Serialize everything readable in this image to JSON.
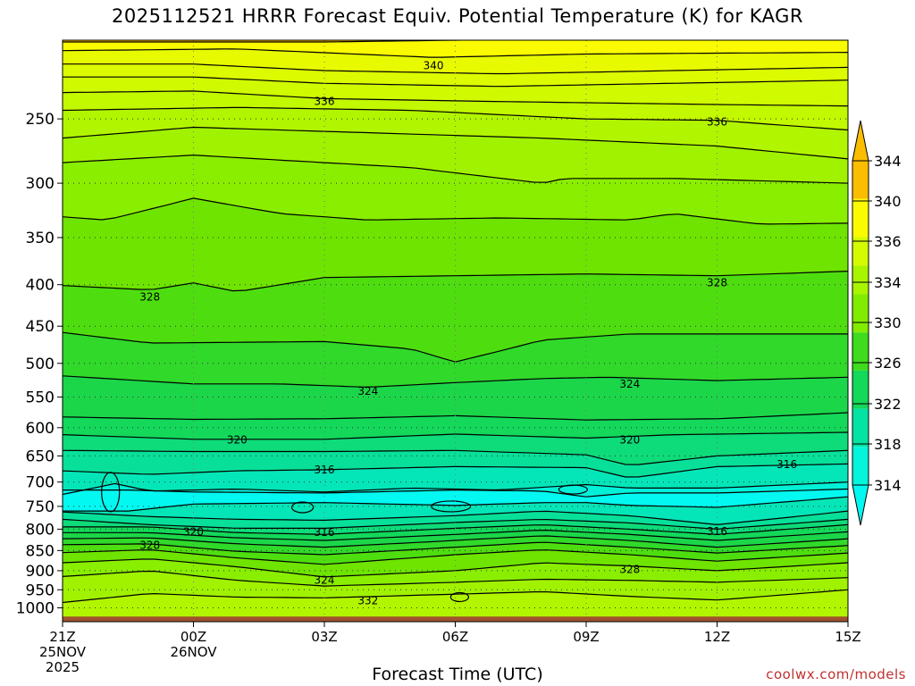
{
  "title": "2025112521 HRRR Forecast Equiv. Potential Temperature (K) for KAGR",
  "xlabel": "Forecast Time (UTC)",
  "credit": "coolwx.com/models",
  "chart_data": {
    "type": "heatmap",
    "title": "2025112521 HRRR Forecast Equiv. Potential Temperature (K) for KAGR",
    "xlabel": "Forecast Time (UTC)",
    "ylabel": "",
    "y_axis": "pressure (log, decreasing upward)",
    "ylim": [
      1040,
      200
    ],
    "xlim": [
      0,
      18
    ],
    "x_ticks": [
      {
        "hour": 0,
        "lines": [
          "21Z",
          "25NOV",
          "2025"
        ]
      },
      {
        "hour": 3,
        "lines": [
          "00Z",
          "26NOV"
        ]
      },
      {
        "hour": 6,
        "lines": [
          "03Z"
        ]
      },
      {
        "hour": 9,
        "lines": [
          "06Z"
        ]
      },
      {
        "hour": 12,
        "lines": [
          "09Z"
        ]
      },
      {
        "hour": 15,
        "lines": [
          "12Z"
        ]
      },
      {
        "hour": 18,
        "lines": [
          "15Z"
        ]
      }
    ],
    "y_ticks": [
      250,
      300,
      350,
      400,
      450,
      500,
      550,
      600,
      650,
      700,
      750,
      800,
      850,
      900,
      950,
      1000
    ],
    "grid": true,
    "surface_pressure": 1025,
    "colorbar": {
      "ticks": [
        344,
        340,
        336,
        334,
        330,
        326,
        322,
        318,
        314
      ],
      "bins": [
        {
          "lo": 342,
          "hi": 346,
          "color": "#fbbd00"
        },
        {
          "lo": 338,
          "hi": 342,
          "color": "#fafa00"
        },
        {
          "lo": 335,
          "hi": 338,
          "color": "#d5fb00"
        },
        {
          "lo": 332,
          "hi": 335,
          "color": "#a9f500"
        },
        {
          "lo": 328,
          "hi": 332,
          "color": "#82ec00"
        },
        {
          "lo": 324,
          "hi": 328,
          "color": "#3edc1c"
        },
        {
          "lo": 320,
          "hi": 324,
          "color": "#13d85a"
        },
        {
          "lo": 316,
          "hi": 320,
          "color": "#05e3a3"
        },
        {
          "lo": 312,
          "hi": 316,
          "color": "#04f5da"
        }
      ],
      "extend_low_color": "#02f8f0",
      "extend_high_color": "#fbbd00"
    },
    "contour_labels": [
      {
        "value": "340",
        "hour": 8.5,
        "p": 215
      },
      {
        "value": "336",
        "hour": 6.0,
        "p": 238
      },
      {
        "value": "336",
        "hour": 15.0,
        "p": 252
      },
      {
        "value": "328",
        "hour": 2.0,
        "p": 414
      },
      {
        "value": "328",
        "hour": 15.0,
        "p": 398
      },
      {
        "value": "324",
        "hour": 7.0,
        "p": 541
      },
      {
        "value": "324",
        "hour": 13.0,
        "p": 530
      },
      {
        "value": "320",
        "hour": 4.0,
        "p": 621
      },
      {
        "value": "320",
        "hour": 13.0,
        "p": 621
      },
      {
        "value": "316",
        "hour": 6.0,
        "p": 676
      },
      {
        "value": "316",
        "hour": 16.6,
        "p": 666
      },
      {
        "value": "320",
        "hour": 3.0,
        "p": 806
      },
      {
        "value": "316",
        "hour": 6.0,
        "p": 807
      },
      {
        "value": "316",
        "hour": 15.0,
        "p": 805
      },
      {
        "value": "328",
        "hour": 2.0,
        "p": 837
      },
      {
        "value": "324",
        "hour": 6.0,
        "p": 924
      },
      {
        "value": "328",
        "hour": 13.0,
        "p": 897
      },
      {
        "value": "332",
        "hour": 7.0,
        "p": 980
      }
    ]
  }
}
